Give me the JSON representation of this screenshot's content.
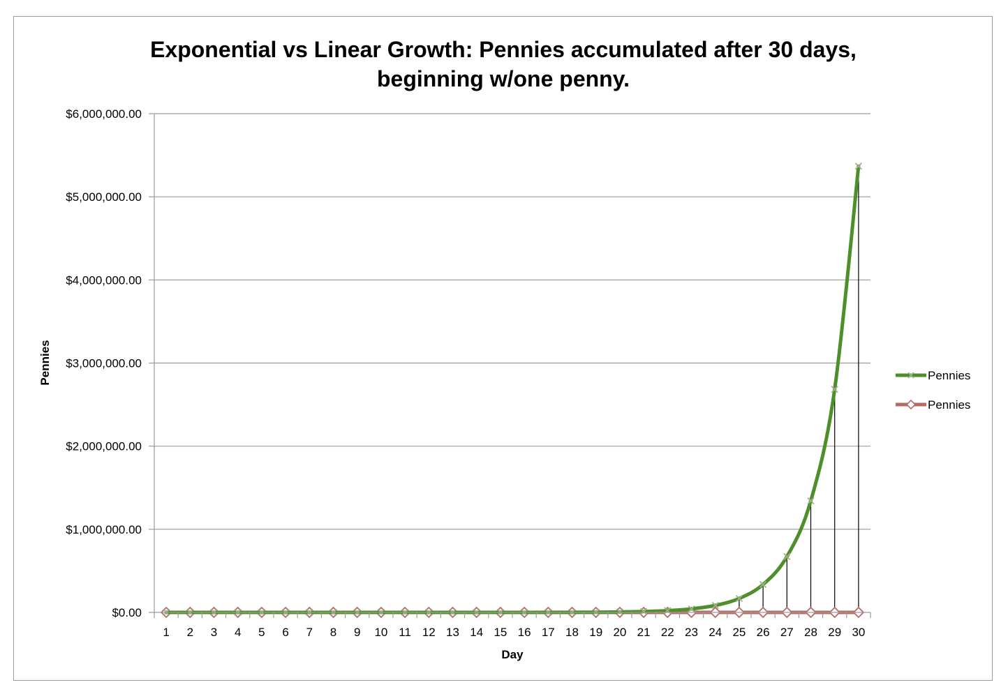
{
  "chart_data": {
    "type": "line",
    "title_lines": [
      "Exponential vs Linear Growth: Pennies accumulated after 30 days,",
      "beginning w/one penny."
    ],
    "xlabel": "Day",
    "ylabel": "Pennies",
    "ylim": [
      0,
      6000000
    ],
    "y_ticks": [
      0,
      1000000,
      2000000,
      3000000,
      4000000,
      5000000,
      6000000
    ],
    "y_tick_labels": [
      "$0.00",
      "$1,000,000.00",
      "$2,000,000.00",
      "$3,000,000.00",
      "$4,000,000.00",
      "$5,000,000.00",
      "$6,000,000.00"
    ],
    "grid": true,
    "legend_position": "right",
    "categories": [
      "1",
      "2",
      "3",
      "4",
      "5",
      "6",
      "7",
      "8",
      "9",
      "10",
      "11",
      "12",
      "13",
      "14",
      "15",
      "16",
      "17",
      "18",
      "19",
      "20",
      "21",
      "22",
      "23",
      "24",
      "25",
      "26",
      "27",
      "28",
      "29",
      "30"
    ],
    "series": [
      {
        "name": "Pennies",
        "color": "#4e8f2c",
        "marker": "x",
        "drop_lines": true,
        "values": [
          0.01,
          0.02,
          0.04,
          0.08,
          0.16,
          0.32,
          0.64,
          1.28,
          2.56,
          5.12,
          10.24,
          20.48,
          40.96,
          81.92,
          163.84,
          327.68,
          655.36,
          1310.72,
          2621.44,
          5242.88,
          10485.76,
          20971.52,
          41943.04,
          83886.08,
          167772.16,
          335544.32,
          671088.64,
          1342177.28,
          2684354.56,
          5368709.12
        ]
      },
      {
        "name": "Pennies",
        "color": "#b86a62",
        "marker": "diamond",
        "drop_lines": false,
        "values": [
          0.01,
          0.02,
          0.03,
          0.04,
          0.05,
          0.06,
          0.07,
          0.08,
          0.09,
          0.1,
          0.11,
          0.12,
          0.13,
          0.14,
          0.15,
          0.16,
          0.17,
          0.18,
          0.19,
          0.2,
          0.21,
          0.22,
          0.23,
          0.24,
          0.25,
          0.26,
          0.27,
          0.28,
          0.29,
          0.3
        ]
      }
    ]
  }
}
